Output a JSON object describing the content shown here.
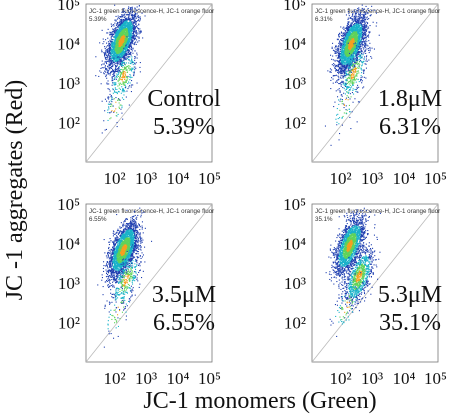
{
  "figure": {
    "ylabel": "JC -1 aggregates (Red)",
    "xlabel": "JC-1 monomers (Green)"
  },
  "chart_data": [
    {
      "type": "scatter",
      "header": "JC-1 green fluorescence-H, JC-1 orange fluor",
      "corner_pct": "5.39%",
      "label_line1": "Control",
      "label_line2": "5.39%",
      "xscale": "log",
      "yscale": "log",
      "xlim": [
        10,
        100000
      ],
      "ylim": [
        10,
        100000
      ],
      "x_ticks": [
        "10²",
        "10³",
        "10⁴",
        "10⁵"
      ],
      "y_ticks": [
        "10²",
        "10³",
        "10⁴",
        "10⁵"
      ],
      "clusters": [
        {
          "cx": 130,
          "cy": 12000,
          "count": 2600
        },
        {
          "cx": 150,
          "cy": 1500,
          "count": 300
        },
        {
          "cx": 80,
          "cy": 250,
          "count": 60
        }
      ]
    },
    {
      "type": "scatter",
      "header": "JC-1 green fluorescence-H, JC-1 orange fluor",
      "corner_pct": "6.31%",
      "label_line1": "1.8μM",
      "label_line2": "6.31%",
      "xscale": "log",
      "yscale": "log",
      "xlim": [
        10,
        100000
      ],
      "ylim": [
        10,
        100000
      ],
      "x_ticks": [
        "10²",
        "10³",
        "10⁴",
        "10⁵"
      ],
      "y_ticks": [
        "10²",
        "10³",
        "10⁴",
        "10⁵"
      ],
      "clusters": [
        {
          "cx": 170,
          "cy": 10000,
          "count": 2600
        },
        {
          "cx": 200,
          "cy": 1800,
          "count": 350
        },
        {
          "cx": 110,
          "cy": 300,
          "count": 60
        }
      ]
    },
    {
      "type": "scatter",
      "header": "JC-1 green fluorescence-H, JC-1 orange fluor",
      "corner_pct": "6.55%",
      "label_line1": "3.5μM",
      "label_line2": "6.55%",
      "xscale": "log",
      "yscale": "log",
      "xlim": [
        10,
        100000
      ],
      "ylim": [
        10,
        100000
      ],
      "x_ticks": [
        "10²",
        "10³",
        "10⁴",
        "10⁵"
      ],
      "y_ticks": [
        "10²",
        "10³",
        "10⁴",
        "10⁵"
      ],
      "clusters": [
        {
          "cx": 150,
          "cy": 7000,
          "count": 2600
        },
        {
          "cx": 180,
          "cy": 1200,
          "count": 350
        },
        {
          "cx": 100,
          "cy": 200,
          "count": 60
        }
      ]
    },
    {
      "type": "scatter",
      "header": "JC-1 green fluorescence-H, JC-1 orange fluor",
      "corner_pct": "35.1%",
      "label_line1": "5.3μM",
      "label_line2": "35.1%",
      "xscale": "log",
      "yscale": "log",
      "xlim": [
        10,
        100000
      ],
      "ylim": [
        10,
        100000
      ],
      "x_ticks": [
        "10²",
        "10³",
        "10⁴",
        "10⁵"
      ],
      "y_ticks": [
        "10²",
        "10³",
        "10⁴",
        "10⁵"
      ],
      "clusters": [
        {
          "cx": 150,
          "cy": 9000,
          "count": 2000
        },
        {
          "cx": 300,
          "cy": 1500,
          "count": 900
        },
        {
          "cx": 120,
          "cy": 250,
          "count": 80
        }
      ]
    }
  ],
  "colors": {
    "density_low": "#1f3fb0",
    "density_mid": "#19b2c9",
    "density_high": "#5fd35a",
    "density_peak": "#f5a020",
    "diagonal": "#bbbbbb",
    "frame": "#777777"
  }
}
